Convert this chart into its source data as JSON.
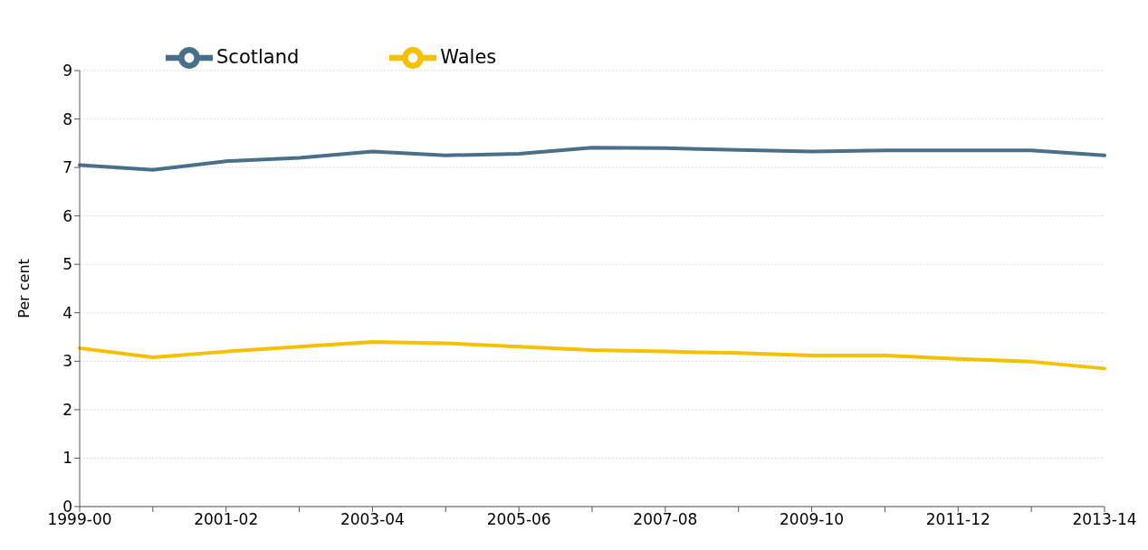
{
  "chart_data": {
    "type": "line",
    "ylabel": "Per cent",
    "categories": [
      "1999-00",
      null,
      "2001-02",
      null,
      "2003-04",
      null,
      "2005-06",
      null,
      "2007-08",
      null,
      "2009-10",
      null,
      "2011-12",
      null,
      "2013-14"
    ],
    "series": [
      {
        "name": "Scotland",
        "color": "#4a6f8a",
        "values": [
          7.05,
          6.95,
          7.13,
          7.2,
          7.33,
          7.25,
          7.28,
          7.41,
          7.4,
          7.36,
          7.33,
          7.35,
          7.35,
          7.35,
          7.25
        ]
      },
      {
        "name": "Wales",
        "color": "#f5c000",
        "values": [
          3.27,
          3.08,
          3.2,
          3.3,
          3.4,
          3.37,
          3.3,
          3.23,
          3.2,
          3.17,
          3.12,
          3.12,
          3.05,
          2.99,
          2.85
        ]
      }
    ],
    "ylim": [
      0,
      9
    ],
    "yticks": [
      0,
      1,
      2,
      3,
      4,
      5,
      6,
      7,
      8,
      9
    ],
    "grid": "y",
    "legend": "top left",
    "marker": "none",
    "line_style": "solid"
  }
}
